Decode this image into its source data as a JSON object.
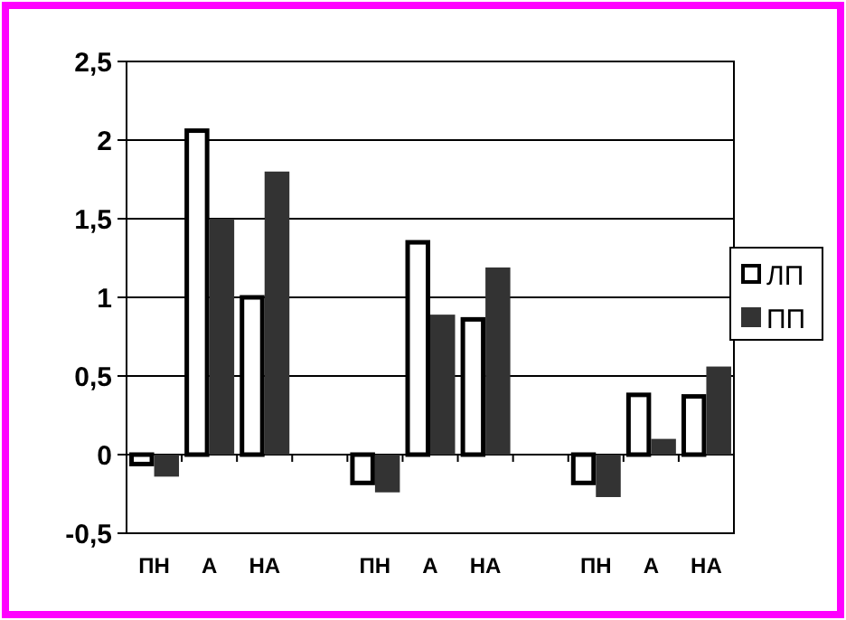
{
  "chart_data": {
    "type": "bar",
    "categories": [
      "ПН",
      "А",
      "НА",
      null,
      "ПН",
      "А",
      "НА",
      null,
      "ПН",
      "А",
      "НА"
    ],
    "series": [
      {
        "name": "ЛП",
        "color": "#ffffff",
        "values": [
          -0.06,
          2.06,
          1.0,
          null,
          -0.18,
          1.35,
          0.86,
          null,
          -0.18,
          0.38,
          0.37
        ]
      },
      {
        "name": "ПП",
        "color": "#333333",
        "values": [
          -0.14,
          1.5,
          1.8,
          null,
          -0.24,
          0.89,
          1.19,
          null,
          -0.27,
          0.1,
          0.56
        ]
      }
    ],
    "ylim": [
      -0.5,
      2.5
    ],
    "yticks": [
      {
        "value": -0.5,
        "label": "-0,5"
      },
      0,
      {
        "value": 0.5,
        "label": "0,5"
      },
      1,
      {
        "value": 1.5,
        "label": "1,5"
      },
      2,
      {
        "value": 2.5,
        "label": "2,5"
      }
    ],
    "grid": "y",
    "legend": "right"
  }
}
